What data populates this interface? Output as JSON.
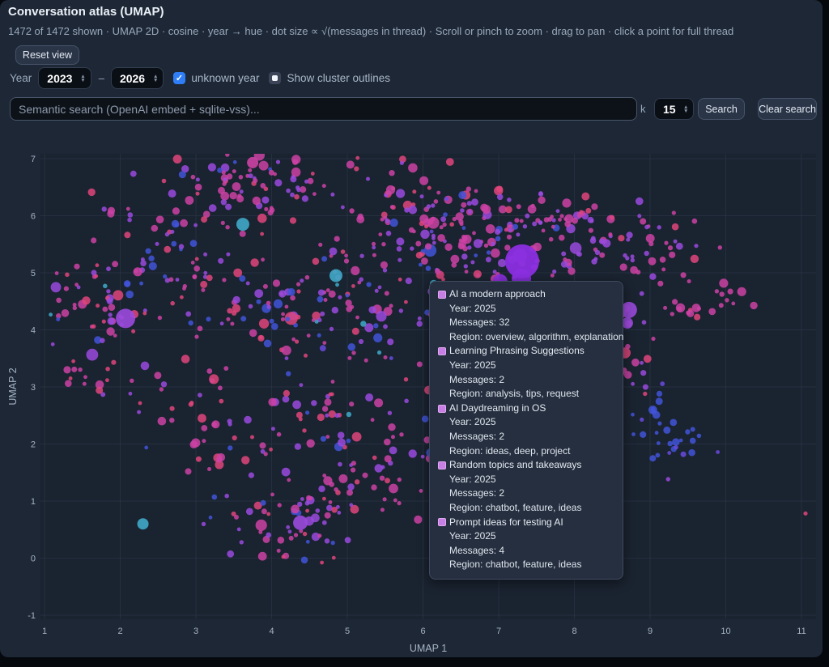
{
  "header": {
    "title": "Conversation atlas (UMAP)",
    "subtitle": "1472 of 1472 shown · UMAP 2D · cosine · year → hue · dot size ∝ √(messages in thread) · Scroll or pinch to zoom · drag to pan · click a point for full thread",
    "reset_label": "Reset view"
  },
  "filters": {
    "year_label": "Year",
    "year_from": "2023",
    "year_to": "2026",
    "range_separator": "–",
    "unknown_year_label": "unknown year",
    "unknown_year_checked": true,
    "cluster_outline_label": "Show cluster outlines",
    "cluster_outline_checked": false
  },
  "search": {
    "placeholder": "Semantic search (OpenAI embed + sqlite-vss)...",
    "k_label": "k",
    "k_value": "15",
    "search_label": "Search",
    "clear_label": "Clear search"
  },
  "chart_data": {
    "type": "scatter",
    "title": "Conversation atlas (UMAP)",
    "xlabel": "UMAP 1",
    "ylabel": "UMAP 2",
    "xlim": [
      1,
      11
    ],
    "ylim": [
      -1,
      7
    ],
    "xticks": [
      1,
      2,
      3,
      4,
      5,
      6,
      7,
      8,
      9,
      10,
      11
    ],
    "yticks": [
      -1,
      0,
      1,
      2,
      3,
      4,
      5,
      6,
      7
    ],
    "grid": true,
    "shown_count": 1472,
    "total_count": 1472,
    "palette": {
      "pk": "#e0457b",
      "mg": "#cd42a5",
      "pu": "#9a4ade",
      "vb": "#6a4ae0",
      "bl": "#4253d8",
      "cy": "#3fa9c9"
    },
    "clusters": [
      {
        "cx": 3.45,
        "cy": 6.5,
        "sx": 0.45,
        "sy": 0.28,
        "n": 55,
        "w": {
          "mg": 4,
          "pu": 3,
          "pk": 2,
          "bl": 1,
          "cy": 0.5
        }
      },
      {
        "cx": 4.3,
        "cy": 6.6,
        "sx": 0.3,
        "sy": 0.2,
        "n": 20,
        "w": {
          "mg": 3,
          "pu": 2
        }
      },
      {
        "cx": 5.5,
        "cy": 6.35,
        "sx": 0.5,
        "sy": 0.3,
        "n": 40,
        "w": {
          "mg": 4,
          "pu": 2,
          "pk": 2
        }
      },
      {
        "cx": 6.9,
        "cy": 6.1,
        "sx": 0.55,
        "sy": 0.3,
        "n": 45,
        "w": {
          "mg": 3,
          "pu": 3,
          "pk": 1,
          "bl": 0.5
        }
      },
      {
        "cx": 8.1,
        "cy": 5.9,
        "sx": 0.5,
        "sy": 0.3,
        "n": 40,
        "w": {
          "mg": 4,
          "pu": 2,
          "pk": 1
        }
      },
      {
        "cx": 9.2,
        "cy": 5.45,
        "sx": 0.35,
        "sy": 0.3,
        "n": 22,
        "w": {
          "mg": 3,
          "pu": 2
        }
      },
      {
        "cx": 1.65,
        "cy": 4.35,
        "sx": 0.3,
        "sy": 0.45,
        "n": 45,
        "w": {
          "mg": 4,
          "pk": 3,
          "pu": 2,
          "bl": 1,
          "cy": 0.5
        }
      },
      {
        "cx": 1.5,
        "cy": 3.15,
        "sx": 0.22,
        "sy": 0.12,
        "n": 10,
        "w": {
          "mg": 4,
          "pk": 2
        }
      },
      {
        "cx": 2.6,
        "cy": 5.15,
        "sx": 0.5,
        "sy": 0.3,
        "n": 35,
        "w": {
          "mg": 3,
          "bl": 2,
          "pu": 2,
          "pk": 1
        }
      },
      {
        "cx": 3.9,
        "cy": 4.6,
        "sx": 0.7,
        "sy": 0.5,
        "n": 80,
        "w": {
          "mg": 3,
          "pu": 3,
          "pk": 2,
          "bl": 2,
          "cy": 0.3
        }
      },
      {
        "cx": 5.2,
        "cy": 4.3,
        "sx": 0.6,
        "sy": 0.6,
        "n": 55,
        "w": {
          "mg": 3,
          "pu": 2,
          "pk": 2,
          "bl": 1,
          "cy": 0.3
        }
      },
      {
        "cx": 6.7,
        "cy": 4.6,
        "sx": 0.5,
        "sy": 0.5,
        "n": 40,
        "w": {
          "mg": 3,
          "pu": 2,
          "pk": 1,
          "bl": 1
        }
      },
      {
        "cx": 6.6,
        "cy": 5.6,
        "sx": 0.5,
        "sy": 0.3,
        "n": 30,
        "w": {
          "pu": 3,
          "mg": 3,
          "bl": 1
        }
      },
      {
        "cx": 8.35,
        "cy": 5.25,
        "sx": 0.3,
        "sy": 0.25,
        "n": 25,
        "w": {
          "pu": 4,
          "mg": 2
        }
      },
      {
        "cx": 8.35,
        "cy": 4.35,
        "sx": 0.3,
        "sy": 0.15,
        "n": 16,
        "w": {
          "mg": 4,
          "pk": 2,
          "pu": 1
        }
      },
      {
        "cx": 9.5,
        "cy": 4.35,
        "sx": 0.15,
        "sy": 0.1,
        "n": 12,
        "w": {
          "mg": 4,
          "pk": 1
        }
      },
      {
        "cx": 10.0,
        "cy": 4.6,
        "sx": 0.12,
        "sy": 0.12,
        "n": 8,
        "w": {
          "mg": 4
        }
      },
      {
        "cx": 8.45,
        "cy": 3.55,
        "sx": 0.35,
        "sy": 0.4,
        "n": 40,
        "w": {
          "pu": 3,
          "mg": 3,
          "pk": 1,
          "bl": 0.5
        }
      },
      {
        "cx": 9.35,
        "cy": 2.1,
        "sx": 0.3,
        "sy": 0.18,
        "n": 22,
        "w": {
          "bl": 5,
          "vb": 2
        }
      },
      {
        "cx": 9.05,
        "cy": 2.65,
        "sx": 0.15,
        "sy": 0.12,
        "n": 8,
        "w": {
          "bl": 4
        }
      },
      {
        "cx": 4.25,
        "cy": 0.55,
        "sx": 0.45,
        "sy": 0.4,
        "n": 60,
        "w": {
          "pu": 3,
          "mg": 3,
          "pk": 1,
          "bl": 0.5
        }
      },
      {
        "cx": 5.15,
        "cy": 1.3,
        "sx": 0.35,
        "sy": 0.35,
        "n": 30,
        "w": {
          "mg": 3,
          "pu": 2,
          "pk": 1
        }
      },
      {
        "cx": 4.7,
        "cy": 2.4,
        "sx": 0.8,
        "sy": 0.5,
        "n": 55,
        "w": {
          "pu": 3,
          "mg": 2,
          "pk": 1,
          "bl": 1
        }
      },
      {
        "cx": 6.3,
        "cy": 2.0,
        "sx": 0.4,
        "sy": 0.3,
        "n": 22,
        "w": {
          "mg": 3,
          "pu": 2,
          "bl": 1
        }
      },
      {
        "cx": 2.9,
        "cy": 2.8,
        "sx": 0.4,
        "sy": 0.35,
        "n": 20,
        "w": {
          "mg": 2,
          "pu": 2,
          "pk": 1
        }
      },
      {
        "cx": 3.4,
        "cy": 1.7,
        "sx": 0.3,
        "sy": 0.25,
        "n": 14,
        "w": {
          "mg": 3,
          "pk": 1
        }
      },
      {
        "cx": 5.8,
        "cy": 5.5,
        "sx": 0.7,
        "sy": 0.45,
        "n": 40,
        "w": {
          "mg": 2,
          "pu": 2,
          "pk": 1,
          "bl": 1,
          "cy": 0.4
        }
      },
      {
        "cx": 7.5,
        "cy": 3.6,
        "sx": 0.5,
        "sy": 0.5,
        "n": 25,
        "w": {
          "mg": 2,
          "pu": 2,
          "bl": 1
        }
      },
      {
        "cx": 5.5,
        "cy": 3.9,
        "sx": 2.2,
        "sy": 1.5,
        "n": 90,
        "w": {
          "mg": 3,
          "pu": 3,
          "pk": 2,
          "bl": 1.5,
          "vb": 1,
          "cy": 0.4
        }
      },
      {
        "cx": 2.2,
        "cy": 5.9,
        "sx": 0.3,
        "sy": 0.25,
        "n": 12,
        "w": {
          "mg": 2,
          "pk": 1,
          "pu": 1
        }
      }
    ],
    "featured_points": [
      {
        "x": 2.07,
        "y": 4.2,
        "r": 12,
        "c": "pu"
      },
      {
        "x": 3.62,
        "y": 5.85,
        "r": 8,
        "c": "cy"
      },
      {
        "x": 4.85,
        "y": 4.95,
        "r": 8,
        "c": "cy"
      },
      {
        "x": 6.55,
        "y": 4.6,
        "r": 7,
        "c": "cy"
      },
      {
        "x": 8.05,
        "y": 2.9,
        "r": 7,
        "c": "cy"
      },
      {
        "x": 2.3,
        "y": 0.6,
        "r": 7,
        "c": "cy"
      },
      {
        "x": 3.75,
        "y": 6.93,
        "r": 7,
        "c": "mg"
      },
      {
        "x": 4.38,
        "y": 0.62,
        "r": 9,
        "c": "pu"
      },
      {
        "x": 8.72,
        "y": 4.35,
        "r": 10,
        "c": "pu"
      },
      {
        "x": 8.7,
        "y": 4.12,
        "r": 7,
        "c": "pu"
      },
      {
        "x": 7.3,
        "y": 4.9,
        "r": 12,
        "c": "#8b2fe0"
      },
      {
        "x": 7.02,
        "y": 4.85,
        "r": 9,
        "c": "#8b2fe0"
      }
    ],
    "hover_point": {
      "x": 7.31,
      "y": 5.2,
      "r": 21,
      "color": "#8b2fe0"
    }
  },
  "tooltip": {
    "labels": {
      "year": "Year",
      "messages": "Messages",
      "region": "Region"
    },
    "marker_color": "#c77fe3",
    "entries": [
      {
        "title": "AI a modern approach",
        "year": "2025",
        "messages": "32",
        "region": "overview, algorithm, explanation"
      },
      {
        "title": "Learning Phrasing Suggestions",
        "year": "2025",
        "messages": "2",
        "region": "analysis, tips, request"
      },
      {
        "title": "AI Daydreaming in OS",
        "year": "2025",
        "messages": "2",
        "region": "ideas, deep, project"
      },
      {
        "title": "Random topics and takeaways",
        "year": "2025",
        "messages": "2",
        "region": "chatbot, feature, ideas"
      },
      {
        "title": "Prompt ideas for testing AI",
        "year": "2025",
        "messages": "4",
        "region": "chatbot, feature, ideas"
      }
    ]
  },
  "colors": {
    "panel": "#1d2735",
    "plot_bg": "#1a2330",
    "grid": "#2e3a4d",
    "tick_text": "#a7b4c5",
    "accent_blue": "#2f7ef7"
  }
}
